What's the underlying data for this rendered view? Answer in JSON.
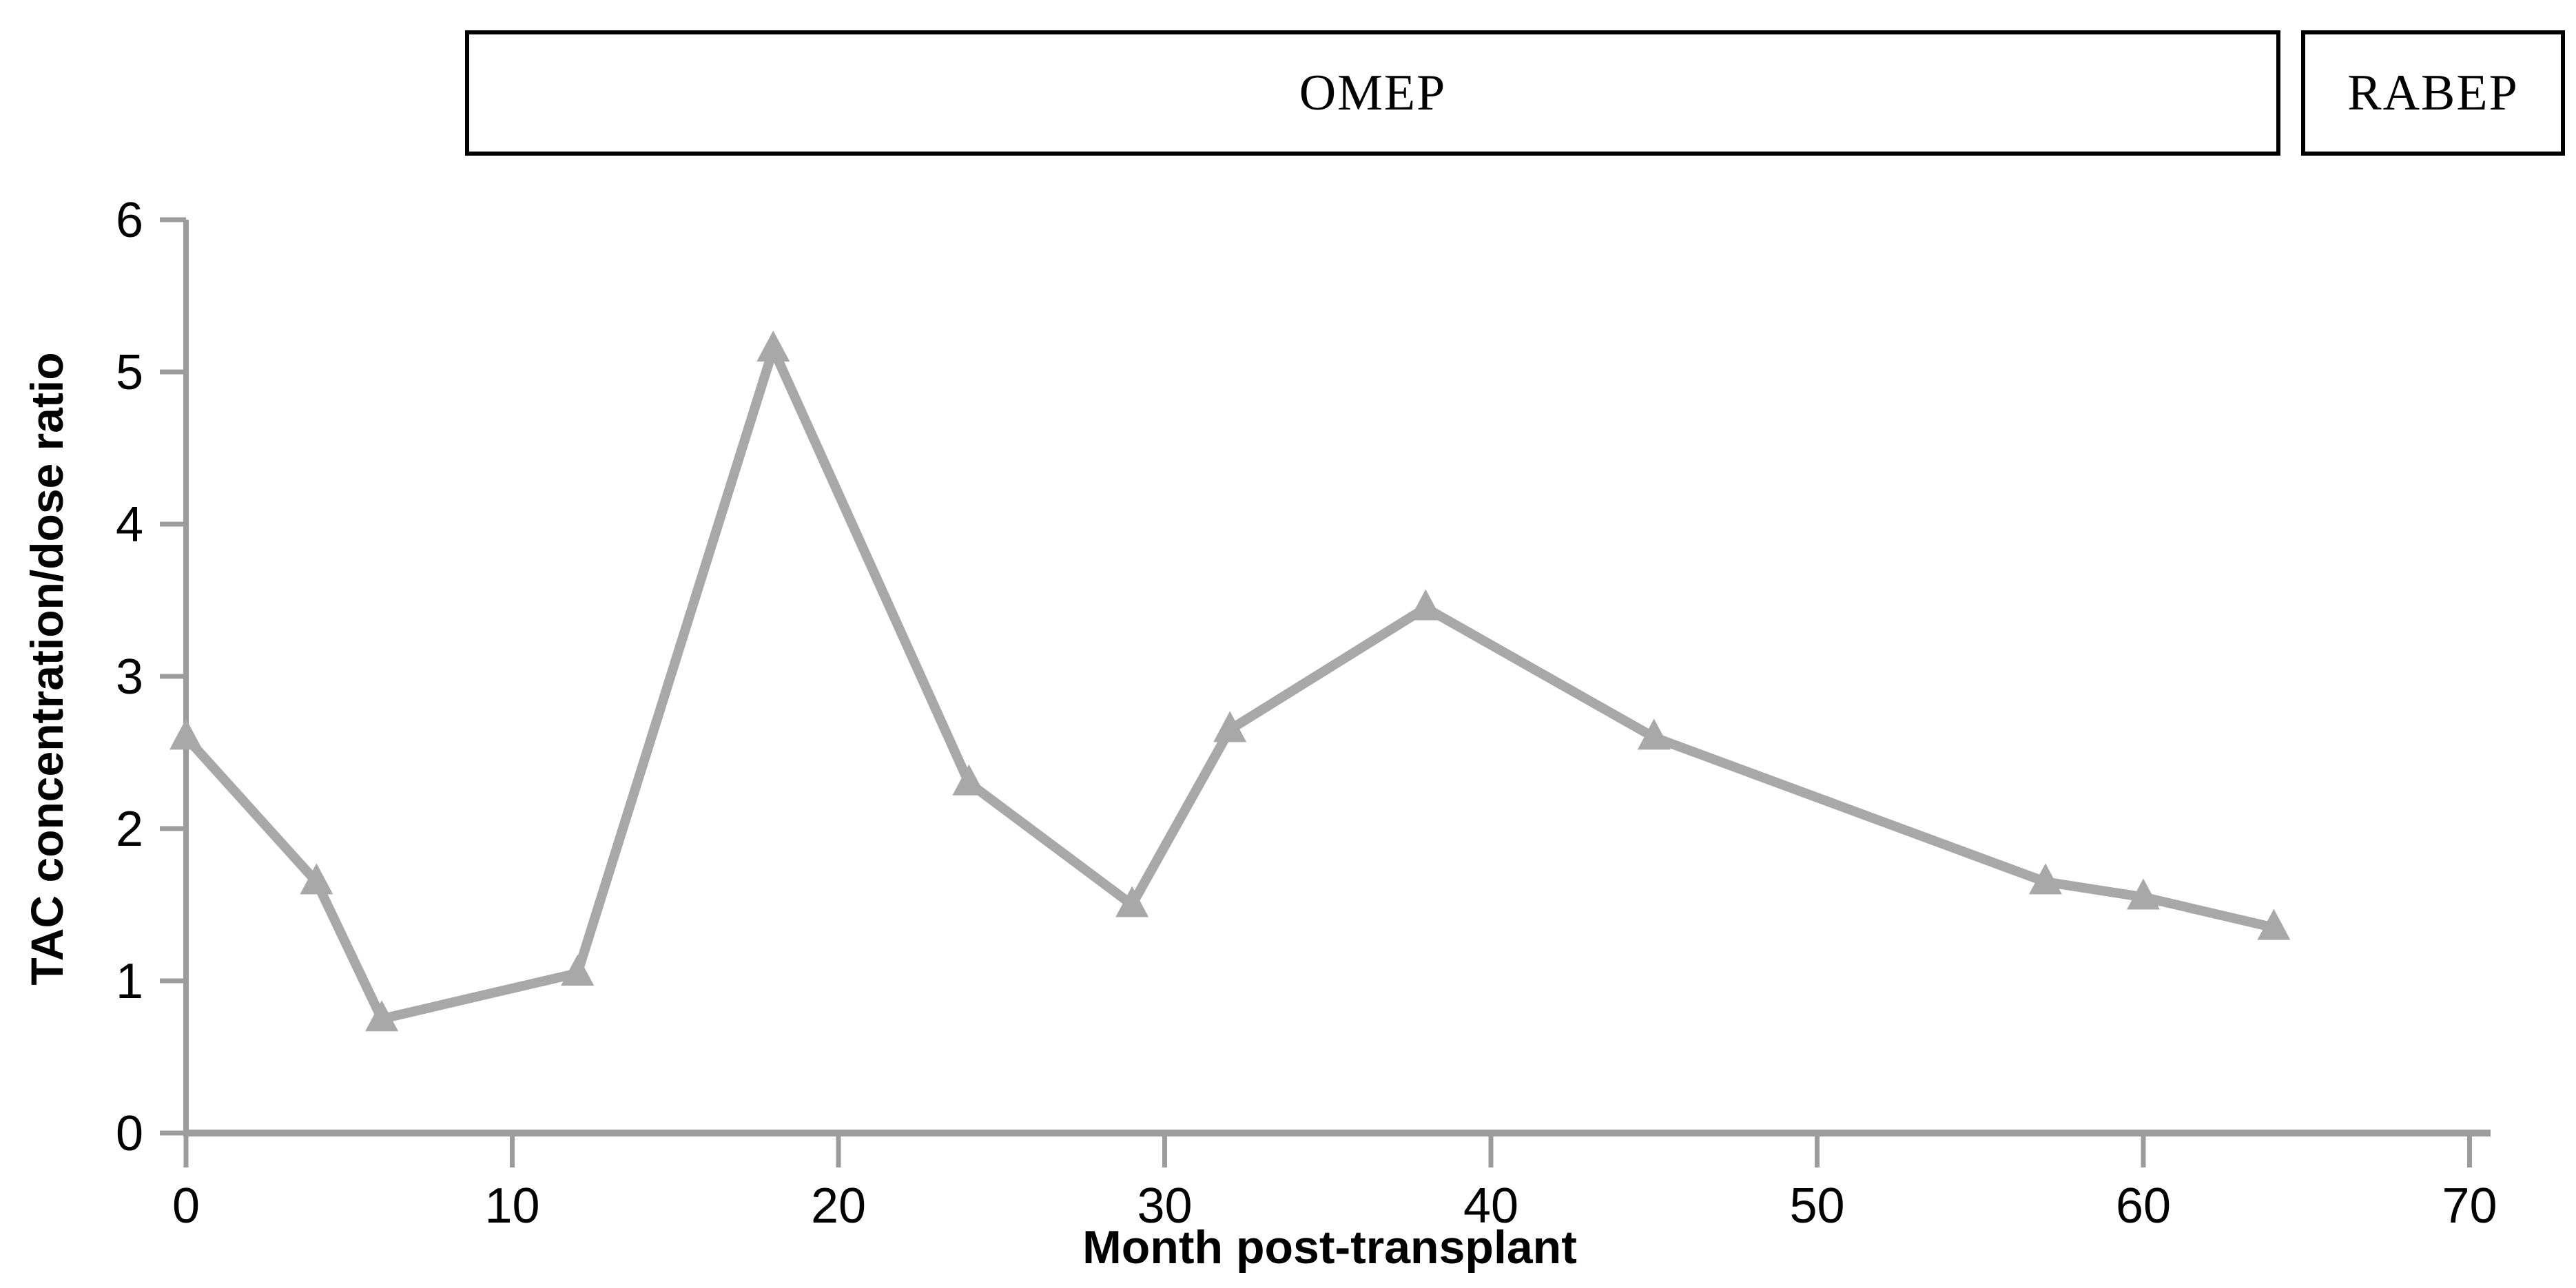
{
  "banners": {
    "omep_label": "OMEP",
    "rabep_label": "RABEP"
  },
  "chart_data": {
    "type": "line",
    "title": "",
    "xlabel": "Month post-transplant",
    "ylabel": "TAC concentration/dose ratio",
    "x": [
      0,
      4,
      6,
      12,
      18,
      24,
      29,
      32,
      38,
      45,
      57,
      60,
      64
    ],
    "series": [
      {
        "name": "TAC concentration/dose ratio",
        "values": [
          2.6,
          1.65,
          0.75,
          1.05,
          5.15,
          2.3,
          1.5,
          2.65,
          3.45,
          2.6,
          1.65,
          1.55,
          1.35
        ]
      }
    ],
    "x_ticks": [
      0,
      10,
      20,
      30,
      40,
      50,
      60,
      70
    ],
    "y_ticks": [
      0,
      1,
      2,
      3,
      4,
      5,
      6
    ],
    "xlim": [
      0,
      70
    ],
    "ylim": [
      0,
      6
    ],
    "grid": false,
    "legend_position": "none",
    "marker": "triangle",
    "colors": {
      "series": "#a8a8a8",
      "axis": "#9c9c9c",
      "text": "#000000",
      "banner_border": "#000000",
      "background": "#ffffff"
    }
  }
}
